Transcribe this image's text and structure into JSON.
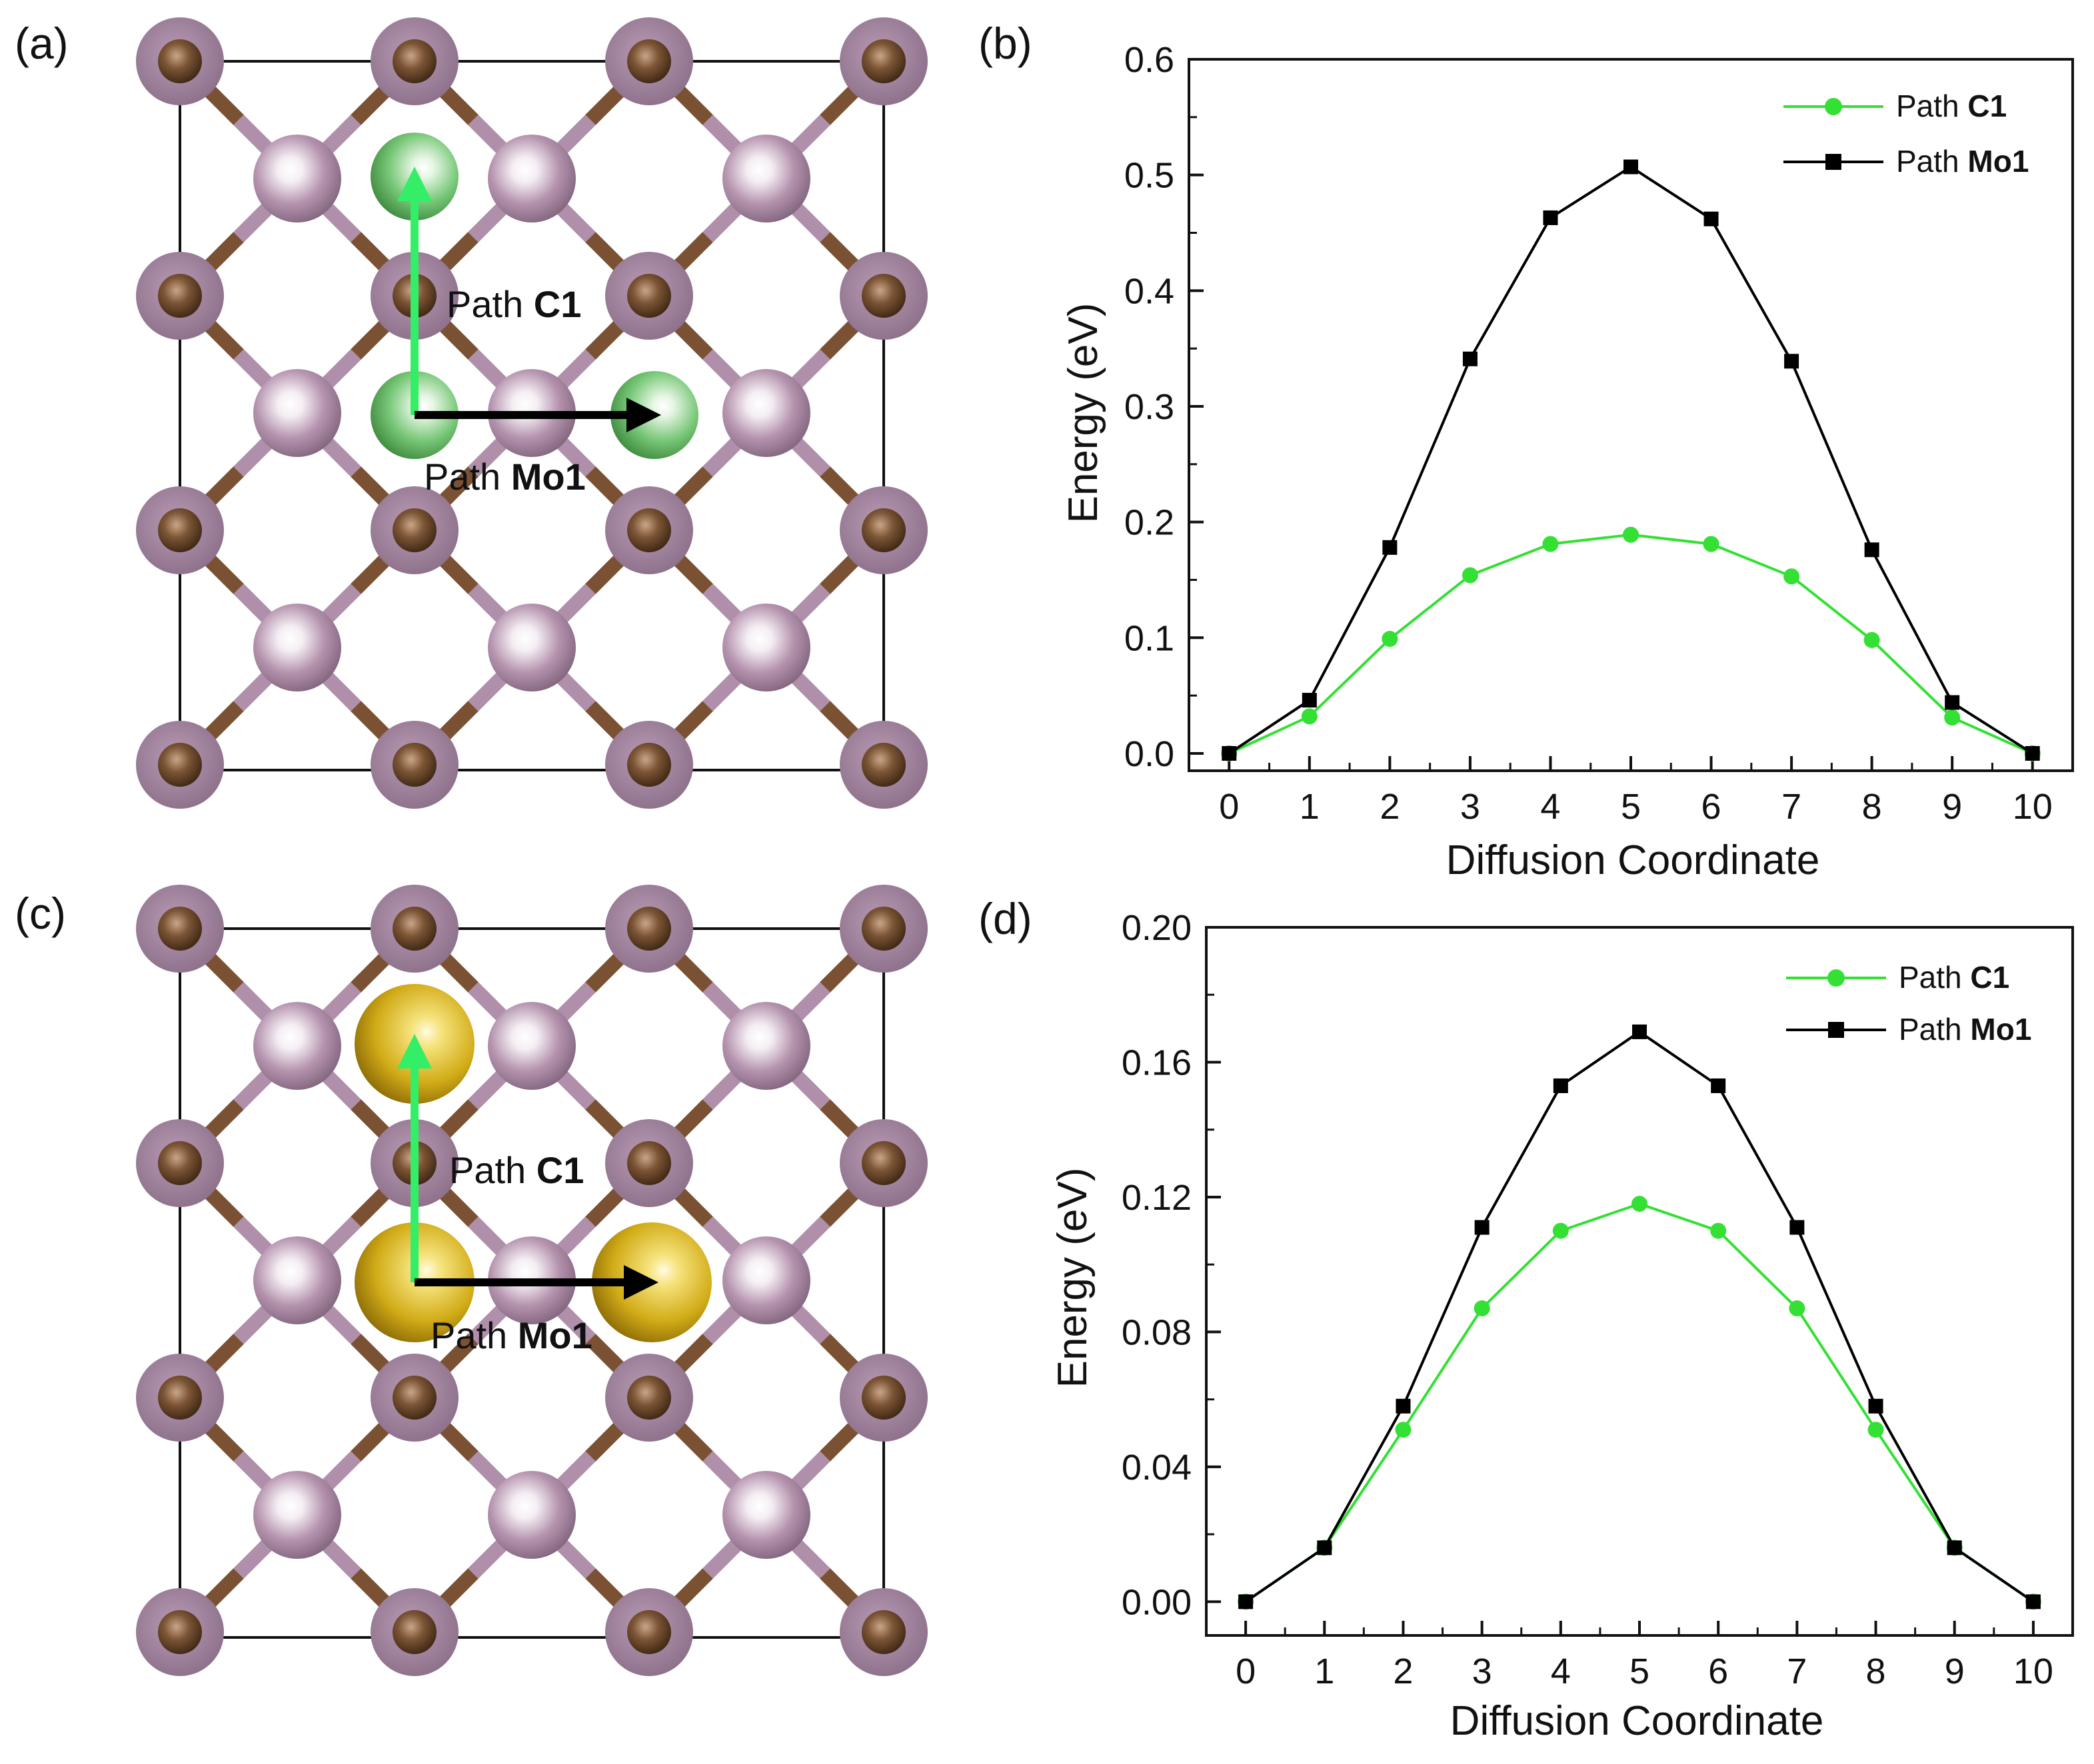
{
  "colors": {
    "path_c1": "#33e033",
    "path_mo1": "#000000",
    "mo_atom": "#a888a2",
    "c_atom": "#6e4a2e",
    "adatom_green": "#6cc46c",
    "adatom_gold": "#d9b520",
    "arrow_green": "#33ee66"
  },
  "structures": [
    {
      "panel_label": "(a)",
      "adatom_icon": "green-adatom-icon",
      "path_c1": {
        "prefix": "Path",
        "name": "C1"
      },
      "path_mo1": {
        "prefix": "Path",
        "name": "Mo1"
      }
    },
    {
      "panel_label": "(c)",
      "adatom_icon": "gold-adatom-icon",
      "path_c1": {
        "prefix": "Path",
        "name": "C1"
      },
      "path_mo1": {
        "prefix": "Path",
        "name": "Mo1"
      }
    }
  ],
  "chart_data": [
    {
      "panel_label": "(b)",
      "type": "line",
      "xlabel": "Diffusion Coordinate",
      "ylabel": "Energy (eV)",
      "xlim": [
        -0.5,
        10.5
      ],
      "ylim": [
        -0.015,
        0.6
      ],
      "x_ticks": [
        "0",
        "1",
        "2",
        "3",
        "4",
        "5",
        "6",
        "7",
        "8",
        "9",
        "10"
      ],
      "y_ticks": [
        "0.0",
        "0.1",
        "0.2",
        "0.3",
        "0.4",
        "0.5",
        "0.6"
      ],
      "y_tick_values": [
        0,
        0.1,
        0.2,
        0.3,
        0.4,
        0.5,
        0.6
      ],
      "legend_position": "top-right",
      "x": [
        0,
        1,
        2,
        3,
        4,
        5,
        6,
        7,
        8,
        9,
        10
      ],
      "series": [
        {
          "name_prefix": "Path",
          "name": "C1",
          "marker": "circle",
          "values": [
            0.0,
            0.032,
            0.099,
            0.154,
            0.181,
            0.189,
            0.181,
            0.153,
            0.098,
            0.031,
            0.0
          ]
        },
        {
          "name_prefix": "Path",
          "name": "Mo1",
          "marker": "square",
          "values": [
            0.0,
            0.046,
            0.178,
            0.341,
            0.463,
            0.507,
            0.462,
            0.339,
            0.176,
            0.044,
            0.0
          ]
        }
      ]
    },
    {
      "panel_label": "(d)",
      "type": "line",
      "xlabel": "Diffusion Coordinate",
      "ylabel": "Energy (eV)",
      "xlim": [
        -0.5,
        10.5
      ],
      "ylim": [
        -0.01,
        0.2
      ],
      "x_ticks": [
        "0",
        "1",
        "2",
        "3",
        "4",
        "5",
        "6",
        "7",
        "8",
        "9",
        "10"
      ],
      "y_ticks": [
        "0.00",
        "0.04",
        "0.08",
        "0.12",
        "0.16",
        "0.20"
      ],
      "y_tick_values": [
        0,
        0.04,
        0.08,
        0.12,
        0.16,
        0.2
      ],
      "legend_position": "top-right",
      "x": [
        0,
        1,
        2,
        3,
        4,
        5,
        6,
        7,
        8,
        9,
        10
      ],
      "series": [
        {
          "name_prefix": "Path",
          "name": "C1",
          "marker": "circle",
          "values": [
            0.0,
            0.016,
            0.051,
            0.087,
            0.11,
            0.118,
            0.11,
            0.087,
            0.051,
            0.016,
            0.0
          ]
        },
        {
          "name_prefix": "Path",
          "name": "Mo1",
          "marker": "square",
          "values": [
            0.0,
            0.016,
            0.058,
            0.111,
            0.153,
            0.169,
            0.153,
            0.111,
            0.058,
            0.016,
            0.0
          ]
        }
      ]
    }
  ]
}
